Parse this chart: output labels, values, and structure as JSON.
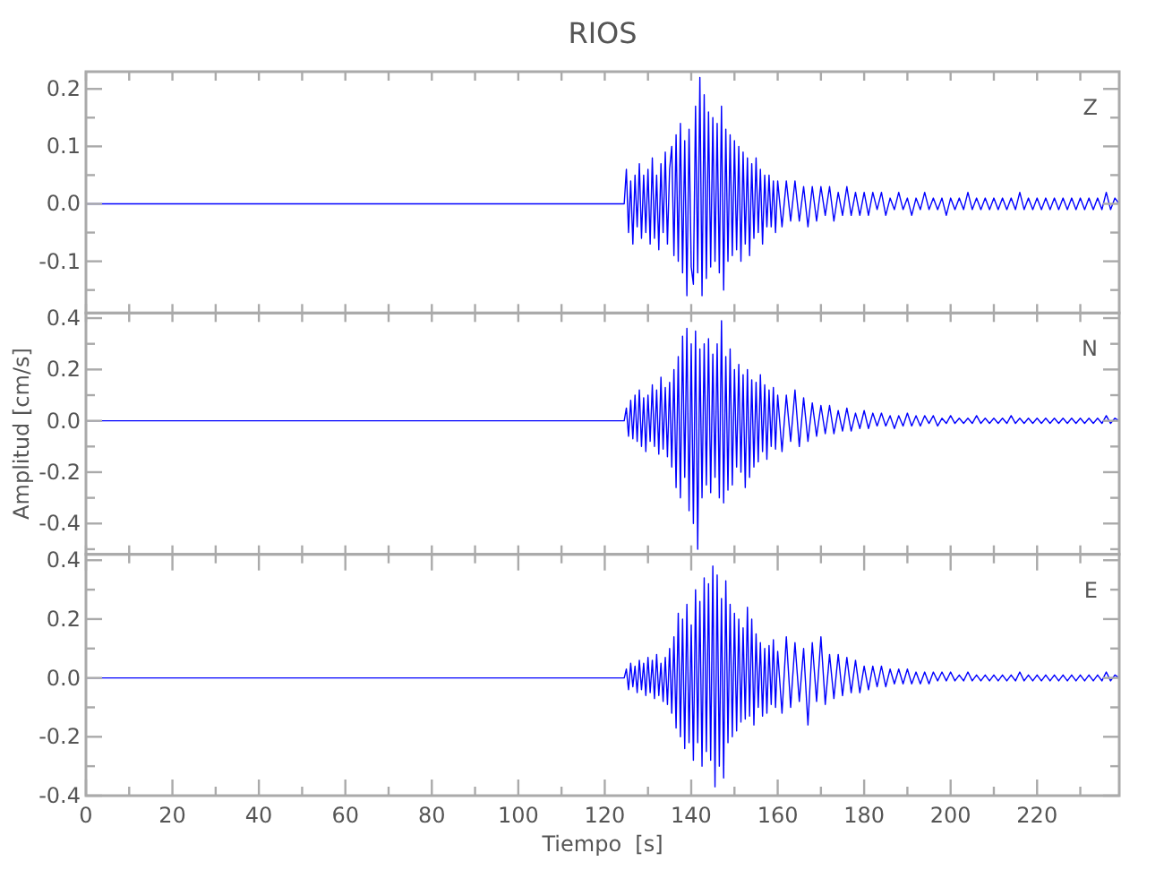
{
  "chart_data": [
    {
      "type": "line",
      "title": "RIOS",
      "annotations": [
        "Z"
      ],
      "tick_labels": "y",
      "xlim": [
        0,
        239
      ],
      "ylim": [
        -0.19,
        0.23
      ],
      "xticks": [
        {
          "value": 0,
          "label": null
        },
        {
          "value": 10,
          "label": null
        },
        {
          "value": 20,
          "label": null
        },
        {
          "value": 30,
          "label": null
        },
        {
          "value": 40,
          "label": null
        },
        {
          "value": 50,
          "label": null
        },
        {
          "value": 60,
          "label": null
        },
        {
          "value": 70,
          "label": null
        },
        {
          "value": 80,
          "label": null
        },
        {
          "value": 90,
          "label": null
        },
        {
          "value": 100,
          "label": null
        },
        {
          "value": 110,
          "label": null
        },
        {
          "value": 120,
          "label": null
        },
        {
          "value": 130,
          "label": null
        },
        {
          "value": 140,
          "label": null
        },
        {
          "value": 150,
          "label": null
        },
        {
          "value": 160,
          "label": null
        },
        {
          "value": 170,
          "label": null
        },
        {
          "value": 180,
          "label": null
        },
        {
          "value": 190,
          "label": null
        },
        {
          "value": 200,
          "label": null
        },
        {
          "value": 210,
          "label": null
        },
        {
          "value": 220,
          "label": null
        },
        {
          "value": 230,
          "label": null
        }
      ],
      "yticks": [
        {
          "value": -0.15,
          "label": null
        },
        -0.1,
        {
          "value": -0.05,
          "label": null
        },
        {
          "value": 0,
          "label": "0.0"
        },
        {
          "value": 0.05,
          "label": null
        },
        0.1,
        {
          "value": 0.15,
          "label": null
        },
        0.2
      ],
      "x": [
        0,
        124.5,
        125,
        125.5,
        126,
        126.5,
        127,
        127.5,
        128,
        128.5,
        129,
        129.5,
        130,
        130.5,
        131,
        131.5,
        132,
        132.5,
        133,
        133.5,
        134,
        134.5,
        135,
        135.5,
        136,
        136.5,
        137,
        137.5,
        138,
        138.5,
        139,
        139.5,
        140,
        140.5,
        141,
        141.5,
        142,
        142.5,
        143,
        143.5,
        144,
        144.5,
        145,
        145.5,
        146,
        146.5,
        147,
        147.5,
        148,
        148.5,
        149,
        149.5,
        150,
        150.5,
        151,
        151.5,
        152,
        152.5,
        153,
        153.5,
        154,
        154.5,
        155,
        155.5,
        156,
        156.5,
        157,
        157.5,
        158,
        158.5,
        159,
        159.5,
        160,
        161,
        162,
        163,
        164,
        165,
        166,
        167,
        168,
        169,
        170,
        171,
        172,
        173,
        174,
        175,
        176,
        177,
        178,
        179,
        180,
        181,
        182,
        183,
        184,
        185,
        186,
        187,
        188,
        189,
        190,
        191,
        192,
        193,
        194,
        195,
        196,
        197,
        198,
        199,
        200,
        201,
        202,
        203,
        204,
        205,
        206,
        207,
        208,
        209,
        210,
        211,
        212,
        213,
        214,
        215,
        216,
        217,
        218,
        219,
        220,
        221,
        222,
        223,
        224,
        225,
        226,
        227,
        228,
        229,
        230,
        231,
        232,
        233,
        234,
        235,
        236,
        237,
        238,
        239
      ],
      "series": [
        {
          "color": "#0000ff",
          "values": [
            0,
            0,
            0.06,
            -0.05,
            0.04,
            -0.07,
            0.05,
            -0.04,
            0.07,
            -0.06,
            0.05,
            -0.05,
            0.06,
            -0.07,
            0.08,
            -0.06,
            0.05,
            -0.08,
            0.07,
            -0.05,
            0.09,
            -0.07,
            0.06,
            0.1,
            -0.09,
            0.12,
            -0.1,
            0.14,
            -0.12,
            0.11,
            -0.16,
            0.13,
            -0.11,
            -0.14,
            0.17,
            -0.12,
            0.22,
            -0.16,
            0.19,
            -0.13,
            0.16,
            -0.11,
            0.15,
            -0.1,
            0.14,
            -0.12,
            0.17,
            -0.15,
            0.13,
            -0.1,
            0.12,
            -0.09,
            0.11,
            -0.08,
            0.1,
            -0.1,
            0.09,
            -0.07,
            0.08,
            -0.09,
            0.07,
            -0.06,
            0.08,
            -0.05,
            0.06,
            -0.07,
            0.05,
            -0.04,
            0.05,
            -0.04,
            0.04,
            -0.05,
            0.04,
            -0.04,
            0.04,
            -0.03,
            0.04,
            -0.03,
            0.03,
            -0.04,
            0.03,
            -0.03,
            0.03,
            -0.02,
            0.03,
            -0.03,
            0.02,
            -0.02,
            0.03,
            -0.02,
            0.02,
            -0.02,
            0.02,
            -0.02,
            0.02,
            -0.01,
            0.02,
            -0.02,
            0.01,
            -0.01,
            0.02,
            -0.01,
            0.01,
            -0.02,
            0.01,
            -0.01,
            0.02,
            -0.01,
            0.01,
            -0.01,
            0.01,
            -0.02,
            0.01,
            -0.01,
            0.01,
            -0.01,
            0.02,
            -0.01,
            0.01,
            -0.01,
            0.01,
            -0.01,
            0.01,
            -0.01,
            0.01,
            -0.01,
            0.01,
            -0.01,
            0.02,
            -0.01,
            0.01,
            -0.01,
            0.01,
            -0.01,
            0.01,
            -0.01,
            0.01,
            -0.01,
            0.01,
            -0.01,
            0.01,
            -0.01,
            0.01,
            -0.01,
            0.01,
            -0.01,
            0.01,
            -0.01,
            0.02,
            -0.01,
            0.01,
            0
          ]
        }
      ]
    },
    {
      "type": "line",
      "ylabel": "Amplitud  [cm/s]",
      "annotations": [
        "N"
      ],
      "tick_labels": "y",
      "xlim": [
        0,
        239
      ],
      "ylim": [
        -0.52,
        0.42
      ],
      "xticks": [
        {
          "value": 0,
          "label": null
        },
        {
          "value": 10,
          "label": null
        },
        {
          "value": 20,
          "label": null
        },
        {
          "value": 30,
          "label": null
        },
        {
          "value": 40,
          "label": null
        },
        {
          "value": 50,
          "label": null
        },
        {
          "value": 60,
          "label": null
        },
        {
          "value": 70,
          "label": null
        },
        {
          "value": 80,
          "label": null
        },
        {
          "value": 90,
          "label": null
        },
        {
          "value": 100,
          "label": null
        },
        {
          "value": 110,
          "label": null
        },
        {
          "value": 120,
          "label": null
        },
        {
          "value": 130,
          "label": null
        },
        {
          "value": 140,
          "label": null
        },
        {
          "value": 150,
          "label": null
        },
        {
          "value": 160,
          "label": null
        },
        {
          "value": 170,
          "label": null
        },
        {
          "value": 180,
          "label": null
        },
        {
          "value": 190,
          "label": null
        },
        {
          "value": 200,
          "label": null
        },
        {
          "value": 210,
          "label": null
        },
        {
          "value": 220,
          "label": null
        },
        {
          "value": 230,
          "label": null
        }
      ],
      "yticks": [
        {
          "value": -0.5,
          "label": null
        },
        -0.4,
        {
          "value": -0.3,
          "label": null
        },
        -0.2,
        {
          "value": -0.1,
          "label": null
        },
        {
          "value": 0,
          "label": "0.0"
        },
        {
          "value": 0.1,
          "label": null
        },
        0.2,
        {
          "value": 0.3,
          "label": null
        },
        0.4
      ],
      "x": [
        0,
        124.5,
        125,
        125.5,
        126,
        126.5,
        127,
        127.5,
        128,
        128.5,
        129,
        129.5,
        130,
        130.5,
        131,
        131.5,
        132,
        132.5,
        133,
        133.5,
        134,
        134.5,
        135,
        135.5,
        136,
        136.5,
        137,
        137.5,
        138,
        138.5,
        139,
        139.5,
        140,
        140.5,
        141,
        141.5,
        142,
        142.5,
        143,
        143.5,
        144,
        144.5,
        145,
        145.5,
        146,
        146.5,
        147,
        147.5,
        148,
        148.5,
        149,
        149.5,
        150,
        150.5,
        151,
        151.5,
        152,
        152.5,
        153,
        153.5,
        154,
        154.5,
        155,
        155.5,
        156,
        156.5,
        157,
        157.5,
        158,
        158.5,
        159,
        159.5,
        160,
        161,
        162,
        163,
        164,
        165,
        166,
        167,
        168,
        169,
        170,
        171,
        172,
        173,
        174,
        175,
        176,
        177,
        178,
        179,
        180,
        181,
        182,
        183,
        184,
        185,
        186,
        187,
        188,
        189,
        190,
        191,
        192,
        193,
        194,
        195,
        196,
        197,
        198,
        199,
        200,
        201,
        202,
        203,
        204,
        205,
        206,
        207,
        208,
        209,
        210,
        211,
        212,
        213,
        214,
        215,
        216,
        217,
        218,
        219,
        220,
        221,
        222,
        223,
        224,
        225,
        226,
        227,
        228,
        229,
        230,
        231,
        232,
        233,
        234,
        235,
        236,
        237,
        238,
        239
      ],
      "series": [
        {
          "color": "#0000ff",
          "values": [
            0,
            0,
            0.05,
            -0.06,
            0.08,
            -0.07,
            0.1,
            -0.08,
            0.12,
            -0.1,
            0.09,
            -0.12,
            0.1,
            -0.08,
            0.14,
            -0.1,
            0.12,
            -0.13,
            0.17,
            -0.11,
            0.13,
            -0.14,
            0.15,
            -0.18,
            0.2,
            -0.26,
            0.25,
            -0.3,
            0.33,
            -0.22,
            0.36,
            -0.35,
            0.3,
            -0.4,
            0.35,
            -0.5,
            0.28,
            -0.3,
            0.3,
            -0.25,
            0.32,
            -0.28,
            0.26,
            -0.22,
            0.3,
            -0.3,
            0.39,
            -0.32,
            0.25,
            -0.27,
            0.28,
            -0.25,
            0.2,
            -0.18,
            0.22,
            -0.2,
            0.18,
            -0.26,
            0.2,
            -0.22,
            0.16,
            -0.18,
            0.15,
            -0.16,
            0.18,
            -0.12,
            0.14,
            -0.15,
            0.12,
            -0.1,
            0.13,
            -0.11,
            0.1,
            -0.12,
            0.1,
            -0.08,
            0.12,
            -0.1,
            0.09,
            -0.08,
            0.07,
            -0.06,
            0.06,
            -0.05,
            0.06,
            -0.05,
            0.04,
            -0.04,
            0.05,
            -0.04,
            0.03,
            -0.03,
            0.04,
            -0.03,
            0.03,
            -0.02,
            0.03,
            -0.02,
            0.02,
            -0.03,
            0.02,
            -0.02,
            0.03,
            -0.02,
            0.02,
            -0.02,
            0.02,
            -0.01,
            0.02,
            -0.02,
            0.01,
            -0.01,
            0.02,
            -0.01,
            0.01,
            -0.01,
            0.01,
            -0.01,
            0.02,
            -0.01,
            0.01,
            -0.01,
            0.01,
            -0.01,
            0.01,
            -0.01,
            0.02,
            -0.01,
            0.01,
            -0.01,
            0.01,
            -0.01,
            0.01,
            -0.01,
            0.01,
            -0.01,
            0.01,
            -0.01,
            0.01,
            -0.01,
            0.01,
            -0.01,
            0.01,
            -0.01,
            0.01,
            -0.01,
            0.01,
            -0.01,
            0.02,
            -0.01,
            0.01,
            0
          ]
        }
      ]
    },
    {
      "type": "line",
      "xlabel": "Tiempo  [s]",
      "annotations": [
        "E"
      ],
      "xlim": [
        0,
        239
      ],
      "ylim": [
        -0.4,
        0.42
      ],
      "xticks": [
        0,
        {
          "value": 10,
          "label": null
        },
        20,
        {
          "value": 30,
          "label": null
        },
        40,
        {
          "value": 50,
          "label": null
        },
        60,
        {
          "value": 70,
          "label": null
        },
        80,
        {
          "value": 90,
          "label": null
        },
        100,
        {
          "value": 110,
          "label": null
        },
        120,
        {
          "value": 130,
          "label": null
        },
        140,
        {
          "value": 150,
          "label": null
        },
        160,
        {
          "value": 170,
          "label": null
        },
        180,
        {
          "value": 190,
          "label": null
        },
        200,
        {
          "value": 210,
          "label": null
        },
        220,
        {
          "value": 230,
          "label": null
        }
      ],
      "yticks": [
        -0.4,
        {
          "value": -0.3,
          "label": null
        },
        -0.2,
        {
          "value": -0.1,
          "label": null
        },
        {
          "value": 0,
          "label": "0.0"
        },
        {
          "value": 0.1,
          "label": null
        },
        0.2,
        {
          "value": 0.3,
          "label": null
        },
        0.4
      ],
      "x": [
        0,
        124.5,
        125,
        125.5,
        126,
        126.5,
        127,
        127.5,
        128,
        128.5,
        129,
        129.5,
        130,
        130.5,
        131,
        131.5,
        132,
        132.5,
        133,
        133.5,
        134,
        134.5,
        135,
        135.5,
        136,
        136.5,
        137,
        137.5,
        138,
        138.5,
        139,
        139.5,
        140,
        140.5,
        141,
        141.5,
        142,
        142.5,
        143,
        143.5,
        144,
        144.5,
        145,
        145.5,
        146,
        146.5,
        147,
        147.5,
        148,
        148.5,
        149,
        149.5,
        150,
        150.5,
        151,
        151.5,
        152,
        152.5,
        153,
        153.5,
        154,
        154.5,
        155,
        155.5,
        156,
        156.5,
        157,
        157.5,
        158,
        158.5,
        159,
        159.5,
        160,
        161,
        162,
        163,
        164,
        165,
        166,
        167,
        168,
        169,
        170,
        171,
        172,
        173,
        174,
        175,
        176,
        177,
        178,
        179,
        180,
        181,
        182,
        183,
        184,
        185,
        186,
        187,
        188,
        189,
        190,
        191,
        192,
        193,
        194,
        195,
        196,
        197,
        198,
        199,
        200,
        201,
        202,
        203,
        204,
        205,
        206,
        207,
        208,
        209,
        210,
        211,
        212,
        213,
        214,
        215,
        216,
        217,
        218,
        219,
        220,
        221,
        222,
        223,
        224,
        225,
        226,
        227,
        228,
        229,
        230,
        231,
        232,
        233,
        234,
        235,
        236,
        237,
        238,
        239
      ],
      "series": [
        {
          "color": "#0000ff",
          "values": [
            0,
            0,
            0.03,
            -0.04,
            0.05,
            -0.03,
            0.04,
            -0.05,
            0.06,
            -0.04,
            0.05,
            -0.06,
            0.07,
            -0.05,
            0.06,
            -0.07,
            0.08,
            -0.06,
            0.05,
            -0.08,
            0.07,
            -0.09,
            0.1,
            -0.12,
            0.14,
            -0.17,
            0.22,
            -0.2,
            0.2,
            -0.24,
            0.25,
            -0.22,
            0.18,
            -0.28,
            0.3,
            -0.22,
            0.26,
            -0.3,
            0.34,
            -0.25,
            0.32,
            -0.28,
            0.38,
            -0.37,
            0.35,
            -0.3,
            0.27,
            -0.34,
            0.33,
            -0.22,
            0.25,
            -0.2,
            0.22,
            -0.18,
            0.2,
            -0.15,
            0.17,
            -0.14,
            0.24,
            -0.13,
            0.2,
            -0.16,
            0.15,
            -0.1,
            0.12,
            -0.13,
            0.1,
            -0.12,
            0.11,
            -0.09,
            0.13,
            -0.1,
            0.09,
            -0.12,
            0.14,
            -0.1,
            0.12,
            -0.08,
            0.1,
            -0.16,
            0.12,
            -0.08,
            0.14,
            -0.09,
            0.08,
            -0.07,
            0.08,
            -0.06,
            0.07,
            -0.05,
            0.06,
            -0.05,
            0.04,
            -0.04,
            0.04,
            -0.03,
            0.04,
            -0.03,
            0.03,
            -0.02,
            0.03,
            -0.02,
            0.03,
            -0.02,
            0.02,
            -0.02,
            0.02,
            -0.02,
            0.02,
            -0.01,
            0.02,
            -0.01,
            0.02,
            -0.01,
            0.01,
            -0.01,
            0.02,
            -0.01,
            0.01,
            -0.01,
            0.01,
            -0.01,
            0.01,
            -0.01,
            0.01,
            -0.01,
            0.01,
            -0.01,
            0.02,
            -0.01,
            0.01,
            -0.01,
            0.01,
            -0.01,
            0.01,
            -0.01,
            0.01,
            -0.01,
            0.01,
            -0.01,
            0.01,
            -0.01,
            0.01,
            -0.01,
            0.01,
            -0.01,
            0.01,
            -0.01,
            0.02,
            -0.01,
            0.01,
            0
          ]
        }
      ]
    }
  ]
}
